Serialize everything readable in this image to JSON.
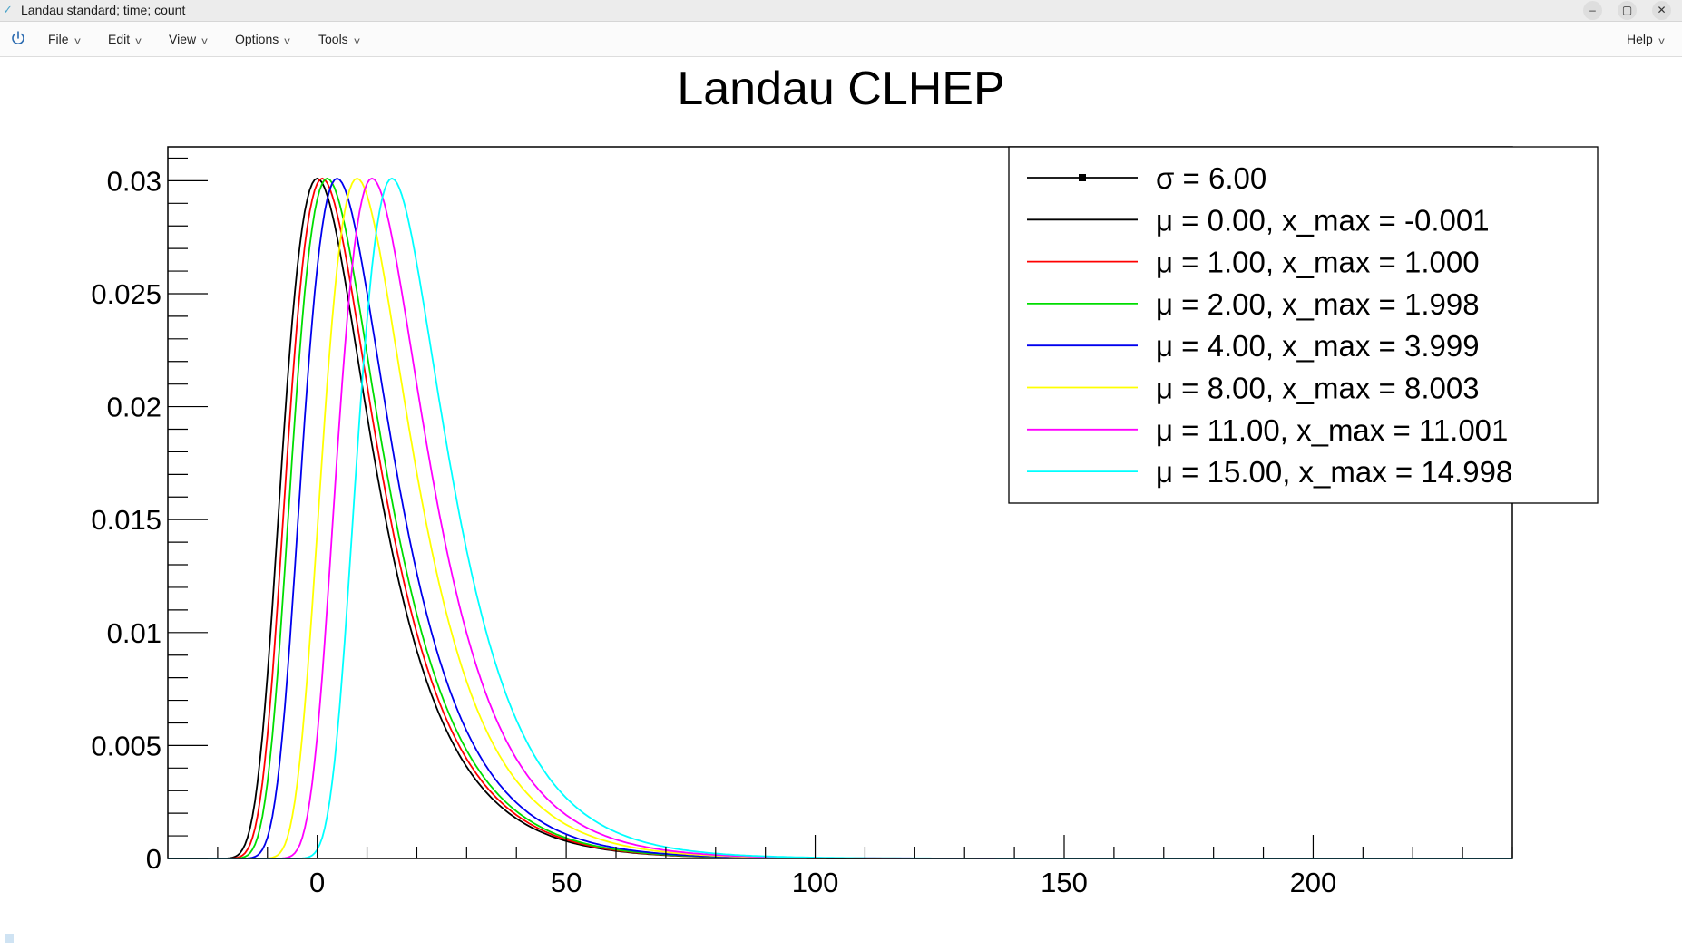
{
  "window": {
    "title": "Landau standard; time; count",
    "icon": "canvas-app-icon"
  },
  "menu": {
    "items": [
      {
        "name": "menu-file",
        "label": "File"
      },
      {
        "name": "menu-edit",
        "label": "Edit"
      },
      {
        "name": "menu-view",
        "label": "View"
      },
      {
        "name": "menu-options",
        "label": "Options"
      },
      {
        "name": "menu-tools",
        "label": "Tools"
      }
    ],
    "help_label": "Help"
  },
  "chart_data": {
    "type": "line",
    "title": "Landau CLHEP",
    "xlabel": "",
    "ylabel": "",
    "xlim": [
      -30,
      240
    ],
    "ylim": [
      0,
      0.0315
    ],
    "x_ticks": [
      0,
      50,
      100,
      150,
      200
    ],
    "x_tick_labels": [
      "0",
      "50",
      "100",
      "150",
      "200"
    ],
    "y_ticks": [
      0,
      0.005,
      0.01,
      0.015,
      0.02,
      0.025,
      0.03
    ],
    "y_tick_labels": [
      "0",
      "0.005",
      "0.01",
      "0.015",
      "0.02",
      "0.025",
      "0.03"
    ],
    "grid": false,
    "legend_position": "top-right",
    "sigma": 6.0,
    "peak_value": 0.0301,
    "legend_header": {
      "label": "σ = 6.00",
      "color": "#000000"
    },
    "series": [
      {
        "name": "μ = 0.00, x_max = -0.001",
        "mu": 0.0,
        "x_max": -0.001,
        "color": "#000000"
      },
      {
        "name": "μ = 1.00, x_max = 1.000",
        "mu": 1.0,
        "x_max": 1.0,
        "color": "#ff0000"
      },
      {
        "name": "μ = 2.00, x_max = 1.998",
        "mu": 2.0,
        "x_max": 1.998,
        "color": "#00dd00"
      },
      {
        "name": "μ = 4.00, x_max = 3.999",
        "mu": 4.0,
        "x_max": 3.999,
        "color": "#0000ee"
      },
      {
        "name": "μ = 8.00, x_max = 8.003",
        "mu": 8.0,
        "x_max": 8.003,
        "color": "#ffff00"
      },
      {
        "name": "μ = 11.00, x_max = 11.001",
        "mu": 11.0,
        "x_max": 11.001,
        "color": "#ff00ff"
      },
      {
        "name": "μ = 15.00, x_max = 14.998",
        "mu": 15.0,
        "x_max": 14.998,
        "color": "#00ffff"
      }
    ]
  }
}
